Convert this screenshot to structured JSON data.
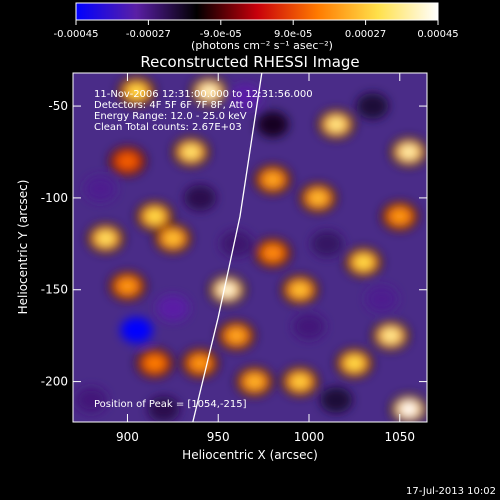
{
  "chart_data": {
    "type": "heatmap",
    "title": "Reconstructed RHESSI Image",
    "xlabel": "Heliocentric X (arcsec)",
    "ylabel": "Heliocentric Y (arcsec)",
    "xlim": [
      870,
      1065
    ],
    "ylim": [
      -222,
      -32
    ],
    "x_ticks": [
      900,
      950,
      1000,
      1050
    ],
    "y_ticks": [
      -200,
      -150,
      -100,
      -50
    ],
    "colorbar": {
      "range": [
        -0.00045,
        0.00045
      ],
      "tick_labels": [
        "-0.00045",
        "-0.00027",
        "-9.0e-05",
        "9.0e-05",
        "0.00027",
        "0.00045"
      ],
      "unit_label": "(photons cm⁻² s⁻¹ asec⁻²)",
      "colors": [
        "#0000ff",
        "#5a1fa5",
        "#000000",
        "#c8000b",
        "#ff7a00",
        "#ffe04a",
        "#ffffff"
      ]
    },
    "annotations": [
      "11-Nov-2006 12:31:00.000 to 12:31:56.000",
      "Detectors: 4F 5F 6F 7F 8F, Att 0",
      "Energy Range: 12.0 - 25.0 keV",
      "Clean    Total counts: 2.67E+03"
    ],
    "peak_label": "Position of Peak = [1054,-215]",
    "limb": {
      "points": [
        [
          936,
          -222
        ],
        [
          950,
          -165
        ],
        [
          962,
          -110
        ],
        [
          970,
          -58
        ],
        [
          974,
          -32
        ]
      ]
    },
    "bright_spots": [
      {
        "x": 888,
        "y": -122,
        "value": 0.00032
      },
      {
        "x": 905,
        "y": -42,
        "value": 0.0003
      },
      {
        "x": 945,
        "y": -42,
        "value": 0.0004
      },
      {
        "x": 935,
        "y": -75,
        "value": 0.00033
      },
      {
        "x": 915,
        "y": -110,
        "value": 0.0003
      },
      {
        "x": 925,
        "y": -122,
        "value": 0.00026
      },
      {
        "x": 955,
        "y": -150,
        "value": 0.00042
      },
      {
        "x": 900,
        "y": -148,
        "value": 0.0002
      },
      {
        "x": 915,
        "y": -190,
        "value": 0.00016
      },
      {
        "x": 940,
        "y": -190,
        "value": 0.0002
      },
      {
        "x": 995,
        "y": -150,
        "value": 0.00026
      },
      {
        "x": 1015,
        "y": -60,
        "value": 0.00035
      },
      {
        "x": 1005,
        "y": -100,
        "value": 0.00025
      },
      {
        "x": 1030,
        "y": -135,
        "value": 0.0003
      },
      {
        "x": 1055,
        "y": -75,
        "value": 0.00038
      },
      {
        "x": 980,
        "y": -90,
        "value": 0.00022
      },
      {
        "x": 1045,
        "y": -175,
        "value": 0.00036
      },
      {
        "x": 1025,
        "y": -190,
        "value": 0.0003
      },
      {
        "x": 995,
        "y": -200,
        "value": 0.00028
      },
      {
        "x": 1055,
        "y": -215,
        "value": 0.00045
      },
      {
        "x": 900,
        "y": -80,
        "value": 0.00012
      },
      {
        "x": 970,
        "y": -200,
        "value": 0.00024
      },
      {
        "x": 1050,
        "y": -110,
        "value": 0.0002
      },
      {
        "x": 980,
        "y": -130,
        "value": 0.00018
      },
      {
        "x": 960,
        "y": -175,
        "value": 0.00022
      }
    ],
    "dark_spots": [
      {
        "x": 905,
        "y": -172,
        "value": -0.00045
      },
      {
        "x": 925,
        "y": -160,
        "value": -0.0003
      },
      {
        "x": 885,
        "y": -95,
        "value": -0.00028
      },
      {
        "x": 965,
        "y": -45,
        "value": -0.0003
      },
      {
        "x": 1000,
        "y": -170,
        "value": -0.00026
      },
      {
        "x": 1010,
        "y": -125,
        "value": -0.00024
      },
      {
        "x": 940,
        "y": -100,
        "value": -0.00022
      },
      {
        "x": 1035,
        "y": -50,
        "value": -0.0002
      },
      {
        "x": 1040,
        "y": -155,
        "value": -0.00028
      },
      {
        "x": 880,
        "y": -210,
        "value": -0.00026
      },
      {
        "x": 920,
        "y": -215,
        "value": -0.00022
      },
      {
        "x": 980,
        "y": -60,
        "value": -0.00018
      },
      {
        "x": 960,
        "y": -125,
        "value": -0.00025
      },
      {
        "x": 1015,
        "y": -210,
        "value": -0.0002
      }
    ]
  },
  "footer": {
    "timestamp": "17-Jul-2013 10:02"
  }
}
